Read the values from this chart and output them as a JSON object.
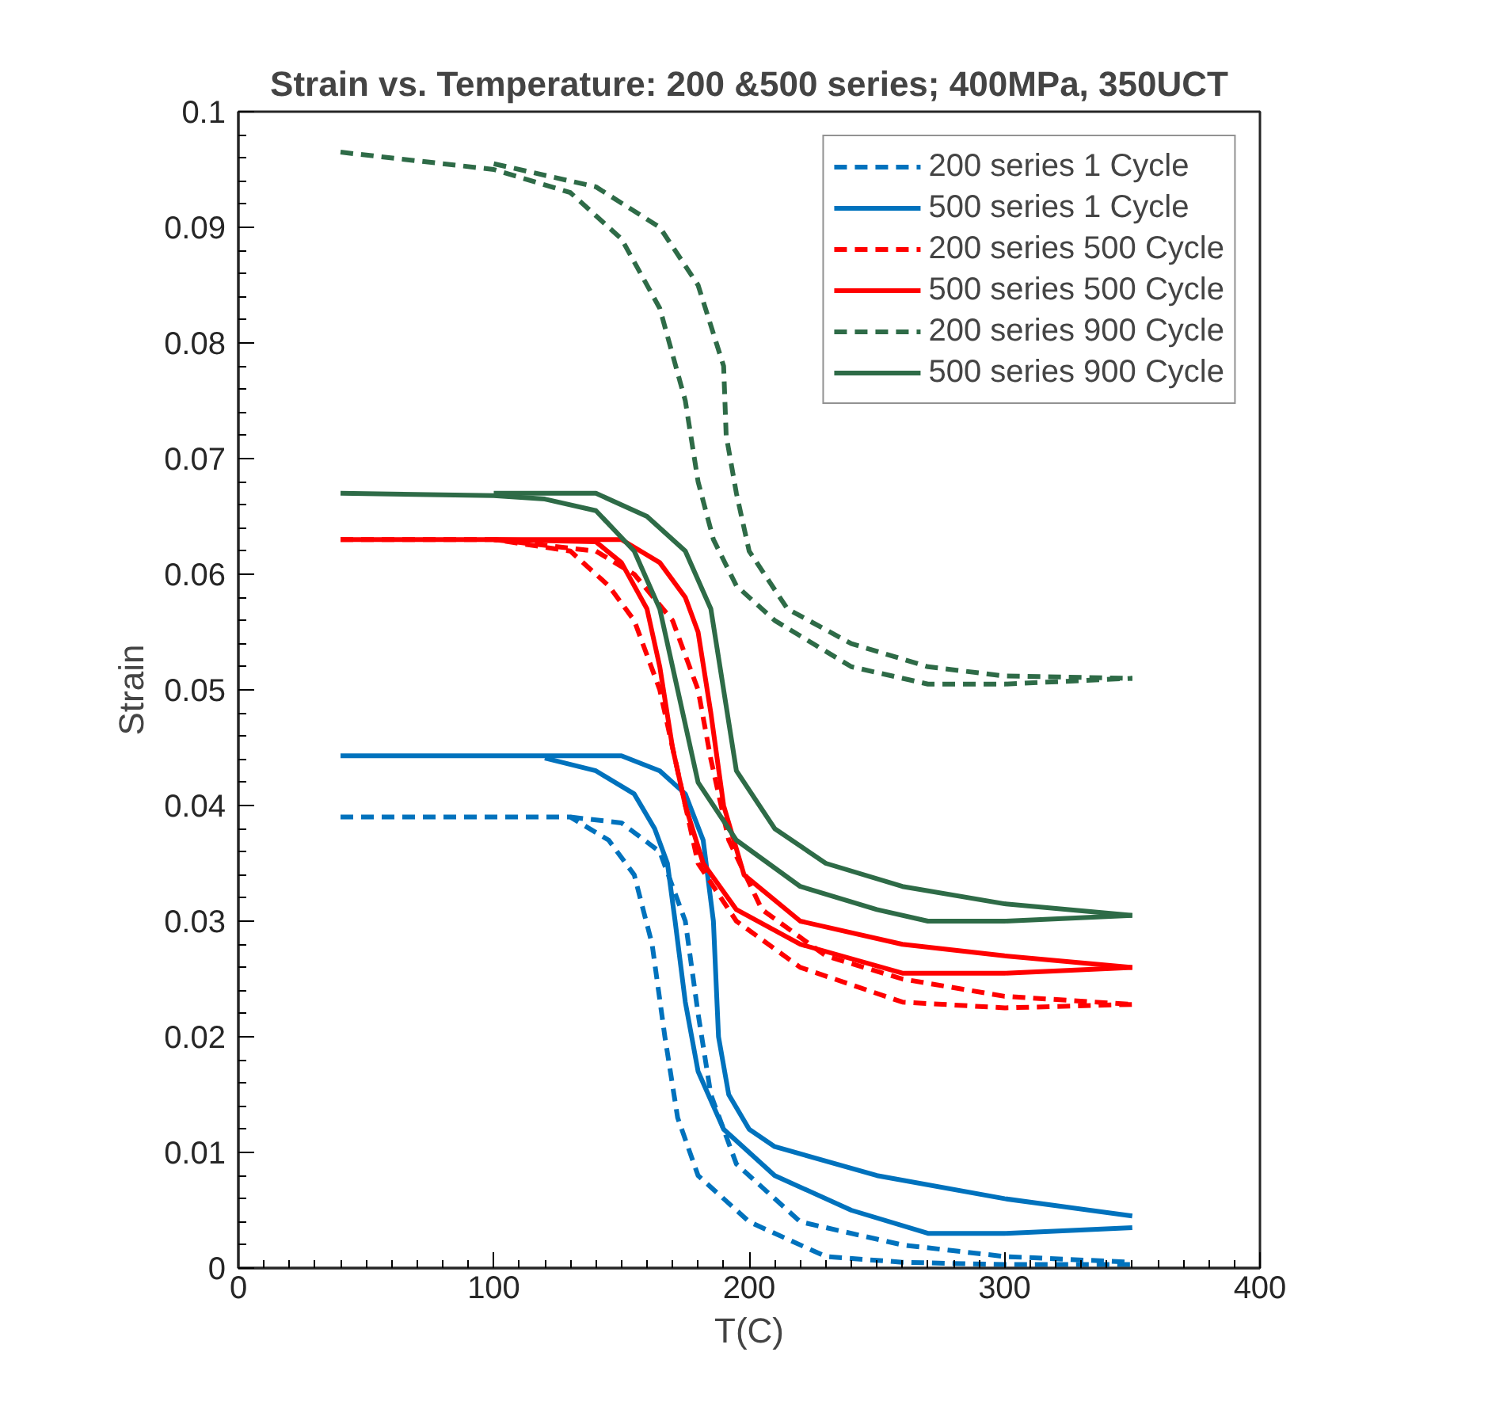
{
  "chart_data": {
    "type": "line",
    "title": "Strain vs. Temperature: 200 &500 series; 400MPa, 350UCT",
    "xlabel": "T(C)",
    "ylabel": "Strain",
    "xlim": [
      0,
      400
    ],
    "xticks": [
      0,
      100,
      200,
      300,
      400
    ],
    "ylim": [
      0,
      0.1
    ],
    "yticks": [
      0,
      0.01,
      0.02,
      0.03,
      0.04,
      0.05,
      0.06,
      0.07,
      0.08,
      0.09,
      0.1
    ],
    "legend": "top right",
    "grid": false,
    "series": [
      {
        "name": "200 series 1 Cycle",
        "color": "#0072bd",
        "line_style": "dashed",
        "x": [
          40,
          100,
          130,
          145,
          155,
          162,
          167,
          172,
          180,
          200,
          230,
          260,
          300,
          350
        ],
        "values": [
          0.039,
          0.039,
          0.039,
          0.037,
          0.034,
          0.028,
          0.02,
          0.013,
          0.008,
          0.004,
          0.001,
          0.0005,
          0.0003,
          0.0003
        ]
      },
      {
        "color": "#0072bd",
        "line_style": "dashed",
        "x": [
          130,
          150,
          165,
          175,
          180,
          185,
          195,
          220,
          260,
          300,
          350
        ],
        "values": [
          0.039,
          0.0385,
          0.036,
          0.03,
          0.022,
          0.015,
          0.009,
          0.004,
          0.002,
          0.001,
          0.0005
        ]
      },
      {
        "name": "500 series 1 Cycle",
        "color": "#0072bd",
        "line_style": "solid",
        "x": [
          40,
          100,
          150,
          165,
          175,
          182,
          186,
          188,
          192,
          200,
          210,
          250,
          300,
          350
        ],
        "values": [
          0.0443,
          0.0443,
          0.0443,
          0.043,
          0.041,
          0.037,
          0.03,
          0.02,
          0.015,
          0.012,
          0.0105,
          0.008,
          0.006,
          0.0045
        ]
      },
      {
        "color": "#0072bd",
        "line_style": "solid",
        "x": [
          120,
          140,
          155,
          163,
          168,
          171,
          175,
          180,
          190,
          210,
          240,
          270,
          300,
          350
        ],
        "values": [
          0.0441,
          0.043,
          0.041,
          0.038,
          0.035,
          0.03,
          0.023,
          0.017,
          0.012,
          0.008,
          0.005,
          0.003,
          0.003,
          0.0035
        ]
      },
      {
        "name": "200 series 500 Cycle",
        "color": "#ff0000",
        "line_style": "dashed",
        "x": [
          40,
          100,
          130,
          145,
          155,
          165,
          172,
          180,
          195,
          220,
          260,
          300,
          350
        ],
        "values": [
          0.063,
          0.063,
          0.062,
          0.059,
          0.056,
          0.05,
          0.043,
          0.035,
          0.03,
          0.026,
          0.023,
          0.0225,
          0.0228
        ]
      },
      {
        "color": "#ff0000",
        "line_style": "dashed",
        "x": [
          100,
          140,
          155,
          170,
          180,
          185,
          192,
          205,
          230,
          260,
          300,
          350
        ],
        "values": [
          0.063,
          0.062,
          0.06,
          0.056,
          0.05,
          0.044,
          0.037,
          0.031,
          0.027,
          0.025,
          0.0235,
          0.0228
        ]
      },
      {
        "name": "500 series 500 Cycle",
        "color": "#ff0000",
        "line_style": "solid",
        "x": [
          40,
          100,
          140,
          150,
          160,
          165,
          170,
          175,
          182,
          195,
          220,
          260,
          300,
          350
        ],
        "values": [
          0.063,
          0.063,
          0.0628,
          0.061,
          0.057,
          0.052,
          0.045,
          0.04,
          0.035,
          0.031,
          0.028,
          0.0255,
          0.0255,
          0.026
        ]
      },
      {
        "color": "#ff0000",
        "line_style": "solid",
        "x": [
          100,
          150,
          165,
          175,
          180,
          185,
          190,
          198,
          220,
          260,
          300,
          350
        ],
        "values": [
          0.063,
          0.063,
          0.061,
          0.058,
          0.055,
          0.048,
          0.04,
          0.034,
          0.03,
          0.028,
          0.027,
          0.026
        ]
      },
      {
        "name": "200 series 900 Cycle",
        "color": "#2e6b47",
        "line_style": "dashed",
        "x": [
          40,
          100,
          130,
          150,
          165,
          175,
          180,
          186,
          195,
          210,
          240,
          270,
          300,
          350
        ],
        "values": [
          0.0965,
          0.095,
          0.093,
          0.089,
          0.083,
          0.075,
          0.068,
          0.063,
          0.059,
          0.056,
          0.052,
          0.0505,
          0.0505,
          0.051
        ]
      },
      {
        "color": "#2e6b47",
        "line_style": "dashed",
        "x": [
          100,
          140,
          165,
          180,
          190,
          191,
          195,
          200,
          215,
          240,
          270,
          300,
          350
        ],
        "values": [
          0.0955,
          0.0935,
          0.09,
          0.085,
          0.078,
          0.072,
          0.067,
          0.062,
          0.057,
          0.054,
          0.052,
          0.0512,
          0.051
        ]
      },
      {
        "name": "500 series 900 Cycle",
        "color": "#2e6b47",
        "line_style": "solid",
        "x": [
          40,
          100,
          120,
          140,
          155,
          165,
          172,
          180,
          195,
          220,
          250,
          270,
          300,
          350
        ],
        "values": [
          0.067,
          0.0668,
          0.0665,
          0.0655,
          0.062,
          0.057,
          0.05,
          0.042,
          0.037,
          0.033,
          0.031,
          0.03,
          0.03,
          0.0305
        ]
      },
      {
        "color": "#2e6b47",
        "line_style": "solid",
        "x": [
          100,
          140,
          160,
          175,
          185,
          190,
          195,
          210,
          230,
          260,
          300,
          350
        ],
        "values": [
          0.067,
          0.067,
          0.065,
          0.062,
          0.057,
          0.05,
          0.043,
          0.038,
          0.035,
          0.033,
          0.0315,
          0.0305
        ]
      }
    ]
  }
}
